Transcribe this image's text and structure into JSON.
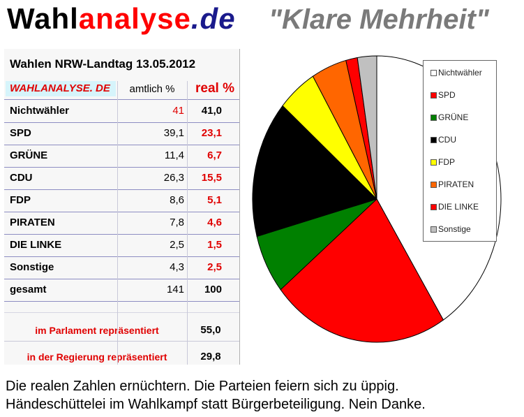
{
  "header": {
    "brand_part1": "Wahl",
    "brand_part2": "analyse",
    "brand_part3": ".de",
    "slogan": "\"Klare Mehrheit\""
  },
  "table": {
    "title": "Wahlen NRW-Landtag 13.05.2012",
    "col_site": "WAHLANALYSE. DE",
    "col_amtlich": "amtlich %",
    "col_real": "real %",
    "rows": [
      {
        "label": "Nichtwähler",
        "amtlich": "41",
        "real": "41,0"
      },
      {
        "label": "SPD",
        "amtlich": "39,1",
        "real": "23,1"
      },
      {
        "label": "GRÜNE",
        "amtlich": "11,4",
        "real": "6,7"
      },
      {
        "label": "CDU",
        "amtlich": "26,3",
        "real": "15,5"
      },
      {
        "label": "FDP",
        "amtlich": "8,6",
        "real": "5,1"
      },
      {
        "label": "PIRATEN",
        "amtlich": "7,8",
        "real": "4,6"
      },
      {
        "label": "DIE LINKE",
        "amtlich": "2,5",
        "real": "1,5"
      },
      {
        "label": "Sonstige",
        "amtlich": "4,3",
        "real": "2,5"
      },
      {
        "label": "gesamt",
        "amtlich": "141",
        "real": "100"
      }
    ],
    "parliament_label": "im Parlament repräsentiert",
    "parliament_value": "55,0",
    "government_label": "in der Regierung repräsentiert",
    "government_value": "29,8"
  },
  "chart_data": {
    "type": "pie",
    "start_angle_deg": 0,
    "slices": [
      {
        "name": "Nichtwähler",
        "value": 41.0,
        "color": "#ffffff"
      },
      {
        "name": "SPD",
        "value": 23.1,
        "color": "#ff0000"
      },
      {
        "name": "GRÜNE",
        "value": 6.7,
        "color": "#008000"
      },
      {
        "name": "CDU",
        "value": 15.5,
        "color": "#000000"
      },
      {
        "name": "FDP",
        "value": 5.1,
        "color": "#ffff00"
      },
      {
        "name": "PIRATEN",
        "value": 4.6,
        "color": "#ff6600"
      },
      {
        "name": "DIE LINKE",
        "value": 1.5,
        "color": "#ff0000"
      },
      {
        "name": "Sonstige",
        "value": 2.5,
        "color": "#c0c0c0"
      }
    ],
    "legend_position": "right"
  },
  "caption": {
    "line1": "Die realen Zahlen ernüchtern. Die Parteien feiern sich zu üppig.",
    "line2": "Händeschüttelei im Wahlkampf statt Bürgerbeteiligung. Nein Danke."
  }
}
